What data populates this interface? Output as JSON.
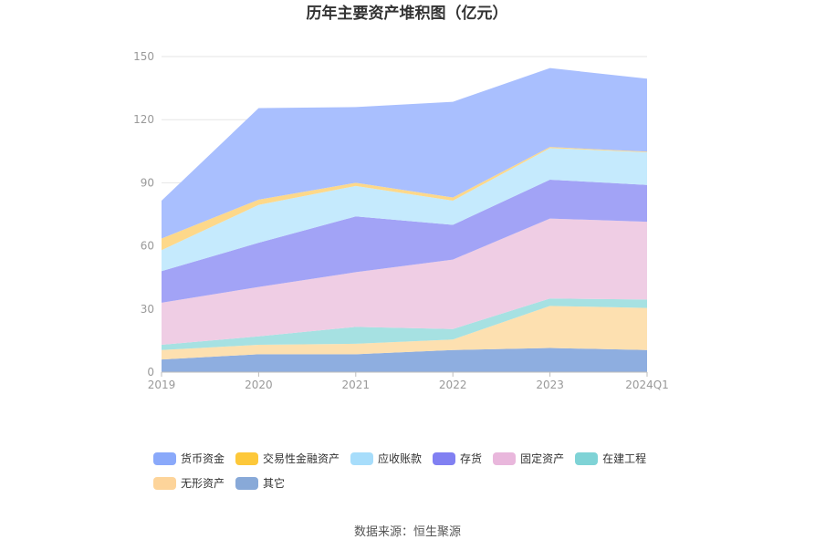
{
  "chart_data": {
    "type": "area",
    "stacked": true,
    "title": "历年主要资产堆积图（亿元）",
    "categories": [
      "2019",
      "2020",
      "2021",
      "2022",
      "2023",
      "2024Q1"
    ],
    "ylim": [
      0,
      150
    ],
    "yticks": [
      0,
      30,
      60,
      90,
      120,
      150
    ],
    "grid": true,
    "legend_position": "bottom",
    "series": [
      {
        "name": "其它",
        "color": "#8eaee0",
        "values": [
          6,
          8.5,
          8.5,
          10.5,
          11.5,
          10.5
        ]
      },
      {
        "name": "无形资产",
        "color": "#fde0b0",
        "values": [
          4.5,
          4.5,
          5,
          5,
          20,
          20
        ]
      },
      {
        "name": "在建工程",
        "color": "#a6e1e2",
        "values": [
          2.5,
          4,
          8,
          5,
          3.5,
          4
        ]
      },
      {
        "name": "固定资产",
        "color": "#efcde4",
        "values": [
          20,
          23.5,
          26,
          33,
          38,
          37
        ]
      },
      {
        "name": "存货",
        "color": "#a2a3f6",
        "values": [
          15,
          21,
          26.5,
          16.5,
          18.5,
          17.5
        ]
      },
      {
        "name": "应收账款",
        "color": "#c5eafd",
        "values": [
          10,
          18,
          14.5,
          11.5,
          15,
          15.5
        ]
      },
      {
        "name": "交易性金融资产",
        "color": "#fdd88a",
        "values": [
          5.5,
          2.5,
          1.5,
          1.5,
          0.5,
          0.3
        ]
      },
      {
        "name": "货币资金",
        "color": "#a9bffe",
        "values": [
          18,
          43.5,
          36,
          45.5,
          37.5,
          34.7
        ]
      }
    ]
  },
  "legend": [
    {
      "name": "货币资金",
      "color": "#8aa9fa"
    },
    {
      "name": "交易性金融资产",
      "color": "#fdc83a"
    },
    {
      "name": "应收账款",
      "color": "#a7ddfb"
    },
    {
      "name": "存货",
      "color": "#8180f2"
    },
    {
      "name": "固定资产",
      "color": "#e9b7dc"
    },
    {
      "name": "在建工程",
      "color": "#7fd3d6"
    },
    {
      "name": "无形资产",
      "color": "#fdd49a"
    },
    {
      "name": "其它",
      "color": "#88a9d8"
    }
  ],
  "source": "数据来源：恒生聚源"
}
